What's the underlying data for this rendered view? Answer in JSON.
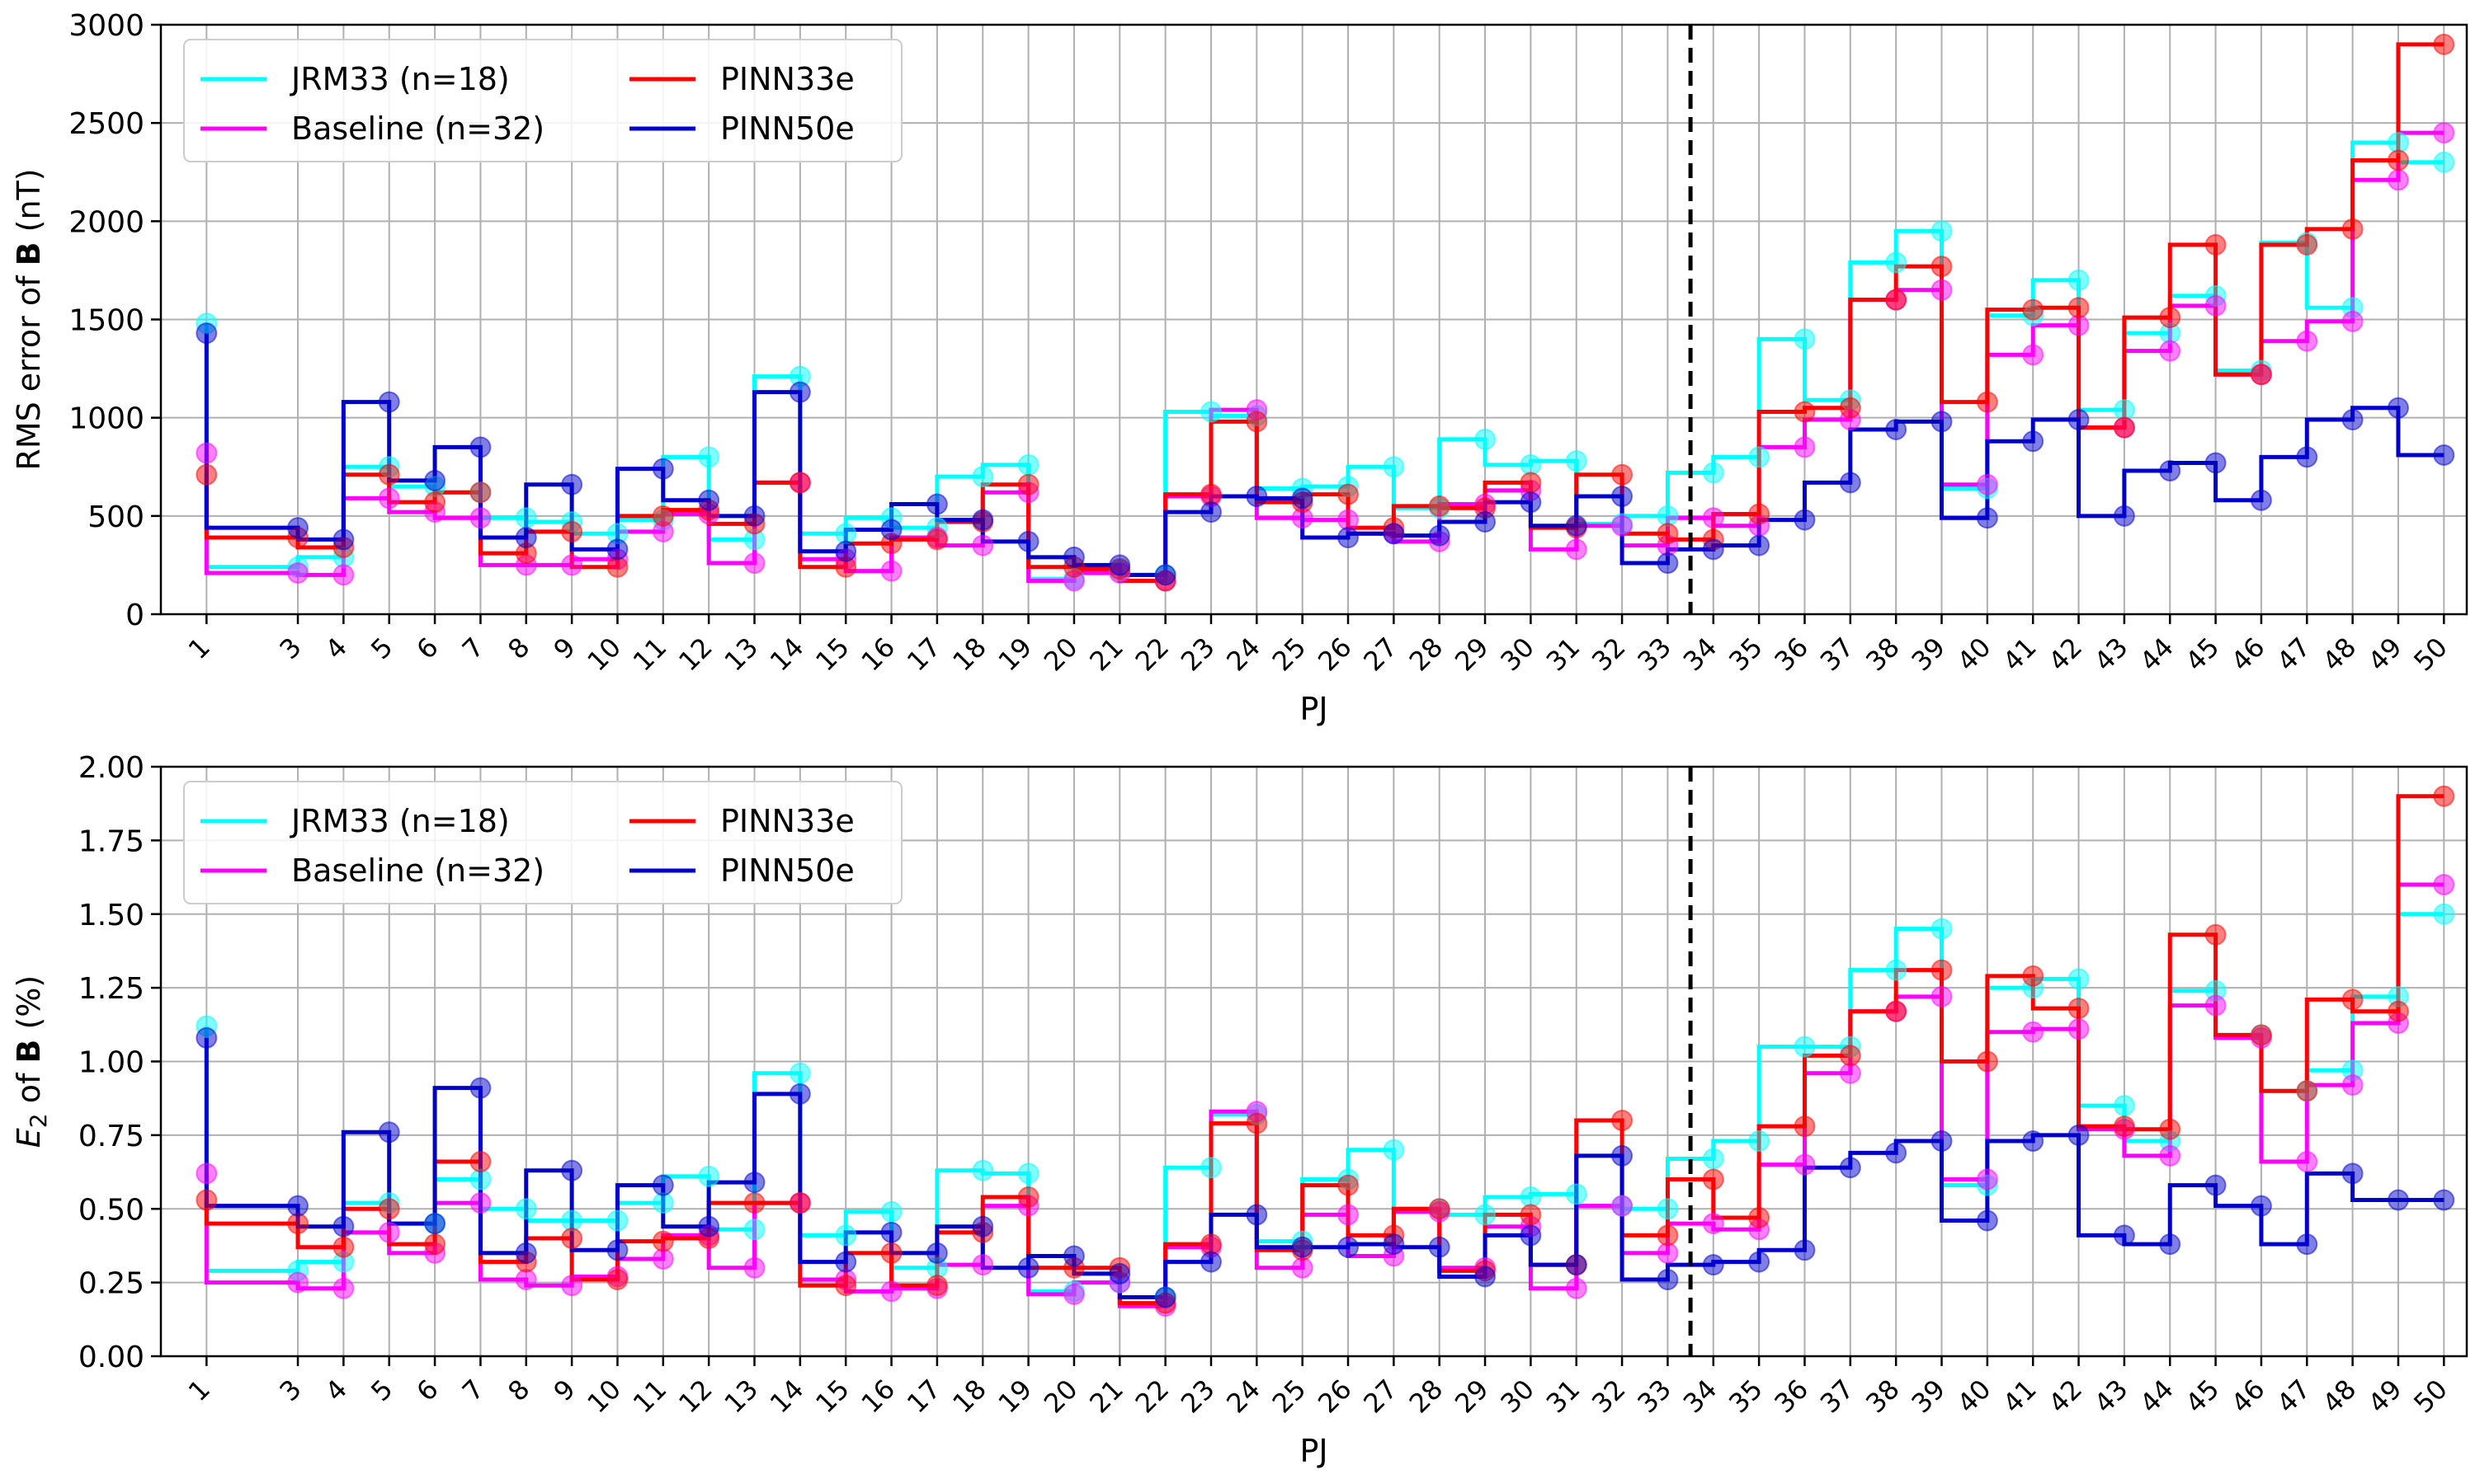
{
  "colors": {
    "JRM33 (n=18)": "#00ffff",
    "Baseline (n=32)": "#ff00ff",
    "PINN33e": "#ff0000",
    "PINN50e": "#0000cd",
    "grid": "#b0b0b0",
    "divider": "#000000"
  },
  "chart_data": [
    {
      "type": "line",
      "step": true,
      "markers": "circle",
      "xlabel": "PJ",
      "ylabel_prefix": "RMS error of ",
      "ylabel_bold": "B",
      "ylabel_suffix": " (nT)",
      "ylim": [
        0,
        3000
      ],
      "yticks": [
        "0",
        "500",
        "1000",
        "1500",
        "2000",
        "2500",
        "3000"
      ],
      "ytick_values": [
        0,
        500,
        1000,
        1500,
        2000,
        2500,
        3000
      ],
      "x": [
        1,
        3,
        4,
        5,
        6,
        7,
        8,
        9,
        10,
        11,
        12,
        13,
        14,
        15,
        16,
        17,
        18,
        19,
        20,
        21,
        22,
        23,
        24,
        25,
        26,
        27,
        28,
        29,
        30,
        31,
        32,
        33,
        34,
        35,
        36,
        37,
        38,
        39,
        40,
        41,
        42,
        43,
        44,
        45,
        46,
        47,
        48,
        49,
        50
      ],
      "xlim": [
        0,
        50.5
      ],
      "divider_x": 33.5,
      "grid": true,
      "legend_position": "upper-left",
      "series": [
        {
          "name": "JRM33 (n=18)",
          "values": [
            1480,
            240,
            290,
            750,
            650,
            620,
            490,
            470,
            410,
            480,
            800,
            380,
            1210,
            410,
            490,
            440,
            700,
            760,
            180,
            220,
            200,
            1030,
            1010,
            640,
            650,
            750,
            540,
            890,
            760,
            780,
            460,
            500,
            720,
            800,
            1400,
            1090,
            1790,
            1950,
            640,
            1520,
            1700,
            1040,
            1430,
            1620,
            1240,
            1890,
            1560,
            2400,
            2300
          ]
        },
        {
          "name": "Baseline (n=32)",
          "values": [
            820,
            210,
            200,
            590,
            520,
            490,
            250,
            250,
            280,
            420,
            510,
            260,
            670,
            280,
            220,
            390,
            350,
            620,
            170,
            210,
            170,
            600,
            1040,
            490,
            480,
            410,
            370,
            560,
            630,
            330,
            450,
            350,
            490,
            450,
            850,
            990,
            1600,
            1650,
            660,
            1320,
            1470,
            950,
            1340,
            1570,
            1220,
            1390,
            1490,
            2210,
            2450
          ]
        },
        {
          "name": "PINN33e",
          "values": [
            710,
            390,
            340,
            710,
            570,
            620,
            310,
            420,
            240,
            500,
            530,
            460,
            670,
            240,
            360,
            380,
            470,
            660,
            240,
            230,
            170,
            610,
            980,
            570,
            610,
            440,
            550,
            540,
            670,
            440,
            710,
            410,
            380,
            510,
            1030,
            1050,
            1600,
            1770,
            1080,
            1550,
            1560,
            950,
            1510,
            1880,
            1220,
            1880,
            1960,
            2310,
            2900
          ]
        },
        {
          "name": "PINN50e",
          "values": [
            1430,
            440,
            380,
            1080,
            680,
            850,
            390,
            660,
            330,
            740,
            580,
            500,
            1130,
            320,
            430,
            560,
            480,
            370,
            290,
            250,
            200,
            520,
            600,
            590,
            390,
            410,
            400,
            470,
            570,
            450,
            600,
            260,
            330,
            350,
            480,
            670,
            940,
            980,
            490,
            880,
            990,
            500,
            730,
            770,
            580,
            800,
            990,
            1050,
            810
          ]
        }
      ]
    },
    {
      "type": "line",
      "step": true,
      "markers": "circle",
      "xlabel": "PJ",
      "ylabel_prefix": "of ",
      "ylabel_sym": "E",
      "ylabel_sub": "2",
      "ylabel_bold": "B",
      "ylabel_suffix": " (%)",
      "ylim": [
        0,
        2
      ],
      "yticks": [
        "0.00",
        "0.25",
        "0.50",
        "0.75",
        "1.00",
        "1.25",
        "1.50",
        "1.75",
        "2.00"
      ],
      "ytick_values": [
        0,
        0.25,
        0.5,
        0.75,
        1.0,
        1.25,
        1.5,
        1.75,
        2.0
      ],
      "x": [
        1,
        3,
        4,
        5,
        6,
        7,
        8,
        9,
        10,
        11,
        12,
        13,
        14,
        15,
        16,
        17,
        18,
        19,
        20,
        21,
        22,
        23,
        24,
        25,
        26,
        27,
        28,
        29,
        30,
        31,
        32,
        33,
        34,
        35,
        36,
        37,
        38,
        39,
        40,
        41,
        42,
        43,
        44,
        45,
        46,
        47,
        48,
        49,
        50
      ],
      "xlim": [
        0,
        50.5
      ],
      "divider_x": 33.5,
      "grid": true,
      "legend_position": "upper-left",
      "series": [
        {
          "name": "JRM33 (n=18)",
          "values": [
            1.12,
            0.29,
            0.32,
            0.52,
            0.45,
            0.6,
            0.5,
            0.46,
            0.46,
            0.52,
            0.61,
            0.43,
            0.96,
            0.41,
            0.49,
            0.3,
            0.63,
            0.62,
            0.22,
            0.25,
            0.2,
            0.64,
            0.82,
            0.39,
            0.6,
            0.7,
            0.5,
            0.48,
            0.54,
            0.55,
            0.51,
            0.5,
            0.67,
            0.73,
            1.05,
            1.05,
            1.31,
            1.45,
            0.58,
            1.25,
            1.28,
            0.85,
            0.73,
            1.24,
            1.09,
            0.9,
            0.97,
            1.22,
            1.5
          ]
        },
        {
          "name": "Baseline (n=32)",
          "values": [
            0.62,
            0.25,
            0.23,
            0.42,
            0.35,
            0.52,
            0.26,
            0.24,
            0.27,
            0.33,
            0.41,
            0.3,
            0.52,
            0.26,
            0.22,
            0.23,
            0.31,
            0.51,
            0.21,
            0.25,
            0.17,
            0.37,
            0.83,
            0.3,
            0.48,
            0.34,
            0.49,
            0.3,
            0.44,
            0.23,
            0.51,
            0.35,
            0.45,
            0.43,
            0.65,
            0.96,
            1.17,
            1.22,
            0.6,
            1.1,
            1.11,
            0.77,
            0.68,
            1.19,
            1.08,
            0.66,
            0.92,
            1.13,
            1.6
          ]
        },
        {
          "name": "PINN33e",
          "values": [
            0.53,
            0.45,
            0.37,
            0.5,
            0.38,
            0.66,
            0.32,
            0.4,
            0.26,
            0.39,
            0.4,
            0.52,
            0.52,
            0.24,
            0.35,
            0.24,
            0.42,
            0.54,
            0.3,
            0.3,
            0.18,
            0.38,
            0.79,
            0.36,
            0.58,
            0.41,
            0.5,
            0.29,
            0.48,
            0.31,
            0.8,
            0.41,
            0.6,
            0.47,
            0.78,
            1.02,
            1.17,
            1.31,
            1.0,
            1.29,
            1.18,
            0.78,
            0.77,
            1.43,
            1.09,
            0.9,
            1.21,
            1.17,
            1.9
          ]
        },
        {
          "name": "PINN50e",
          "values": [
            1.08,
            0.51,
            0.44,
            0.76,
            0.45,
            0.91,
            0.35,
            0.63,
            0.36,
            0.58,
            0.44,
            0.59,
            0.89,
            0.32,
            0.42,
            0.35,
            0.44,
            0.3,
            0.34,
            0.28,
            0.2,
            0.32,
            0.48,
            0.37,
            0.37,
            0.38,
            0.37,
            0.27,
            0.41,
            0.31,
            0.68,
            0.26,
            0.31,
            0.32,
            0.36,
            0.64,
            0.69,
            0.73,
            0.46,
            0.73,
            0.75,
            0.41,
            0.38,
            0.58,
            0.51,
            0.38,
            0.62,
            0.53,
            0.53
          ]
        }
      ]
    }
  ]
}
